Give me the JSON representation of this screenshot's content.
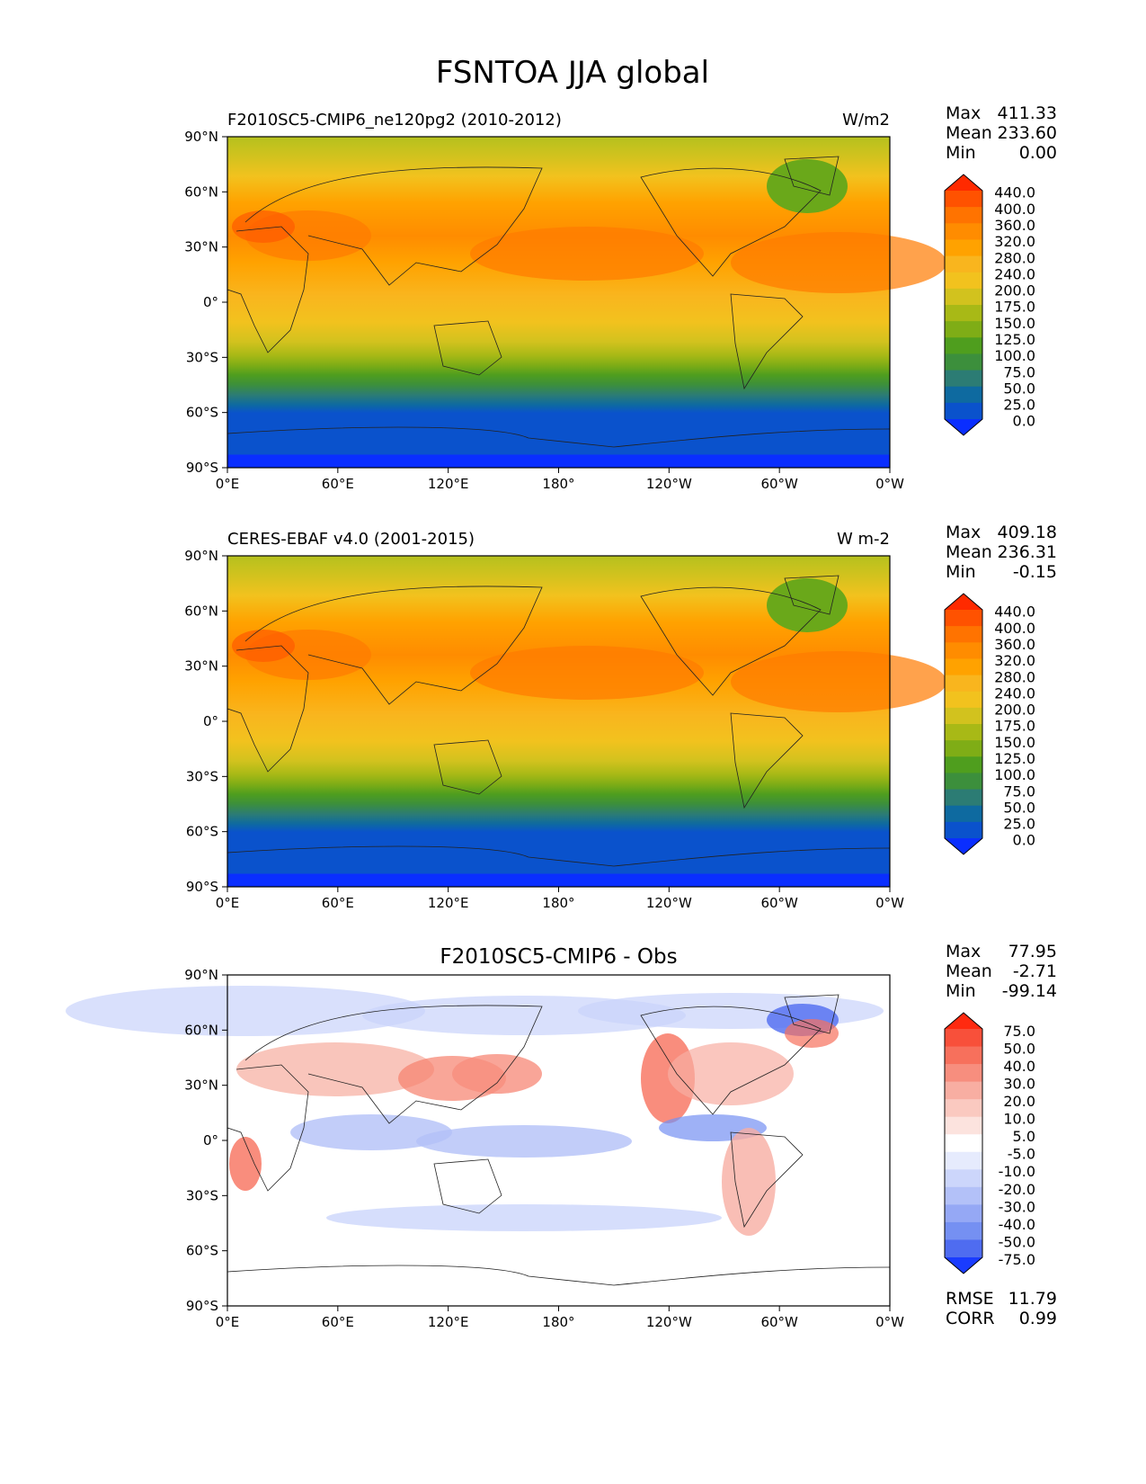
{
  "figure_title": "FSNTOA JJA global",
  "axes": {
    "lat_ticks": [
      "90°N",
      "60°N",
      "30°N",
      "0°",
      "30°S",
      "60°S",
      "90°S"
    ],
    "lon_ticks": [
      "0°E",
      "60°E",
      "120°E",
      "180°",
      "120°W",
      "60°W",
      "0°W"
    ]
  },
  "panels": [
    {
      "id": "test",
      "title_left": "F2010SC5-CMIP6_ne120pg2 (2010-2012)",
      "title_center": "",
      "units": "W/m2",
      "stats": [
        {
          "label": "Max",
          "value": "411.33"
        },
        {
          "label": "Mean",
          "value": "233.60"
        },
        {
          "label": "Min",
          "value": "0.00"
        }
      ],
      "colorbar": {
        "levels": [
          "440.0",
          "400.0",
          "360.0",
          "320.0",
          "280.0",
          "240.0",
          "200.0",
          "175.0",
          "150.0",
          "125.0",
          "100.0",
          "75.0",
          "50.0",
          "25.0",
          "0.0"
        ],
        "colors": [
          "#ff2a00",
          "#ff5200",
          "#ff7300",
          "#ff8c00",
          "#ffa200",
          "#f9b51e",
          "#f2c21e",
          "#d2c21e",
          "#a8b916",
          "#7fad16",
          "#4f9e1e",
          "#3c8f3c",
          "#2c7c74",
          "#0e6aa0",
          "#0a52cc",
          "#0a2eff"
        ]
      },
      "field": "absolute"
    },
    {
      "id": "reference",
      "title_left": "CERES-EBAF v4.0 (2001-2015)",
      "title_center": "",
      "units": "W m-2",
      "stats": [
        {
          "label": "Max",
          "value": "409.18"
        },
        {
          "label": "Mean",
          "value": "236.31"
        },
        {
          "label": "Min",
          "value": "-0.15"
        }
      ],
      "colorbar": {
        "levels": [
          "440.0",
          "400.0",
          "360.0",
          "320.0",
          "280.0",
          "240.0",
          "200.0",
          "175.0",
          "150.0",
          "125.0",
          "100.0",
          "75.0",
          "50.0",
          "25.0",
          "0.0"
        ],
        "colors": [
          "#ff2a00",
          "#ff5200",
          "#ff7300",
          "#ff8c00",
          "#ffa200",
          "#f9b51e",
          "#f2c21e",
          "#d2c21e",
          "#a8b916",
          "#7fad16",
          "#4f9e1e",
          "#3c8f3c",
          "#2c7c74",
          "#0e6aa0",
          "#0a52cc",
          "#0a2eff"
        ]
      },
      "field": "absolute"
    },
    {
      "id": "difference",
      "title_left": "",
      "title_center": "F2010SC5-CMIP6 - Obs",
      "units": "",
      "stats": [
        {
          "label": "Max",
          "value": "77.95"
        },
        {
          "label": "Mean",
          "value": "-2.71"
        },
        {
          "label": "Min",
          "value": "-99.14"
        }
      ],
      "colorbar": {
        "levels": [
          "75.0",
          "50.0",
          "40.0",
          "30.0",
          "20.0",
          "10.0",
          "5.0",
          "-5.0",
          "-10.0",
          "-20.0",
          "-30.0",
          "-40.0",
          "-50.0",
          "-75.0"
        ],
        "colors": [
          "#ff2a10",
          "#f8503a",
          "#f7705c",
          "#f78e7e",
          "#f8aea2",
          "#fac9c0",
          "#fce3de",
          "#ffffff",
          "#e6ebfd",
          "#ccd6fb",
          "#b3c1f8",
          "#95a8f5",
          "#7590f2",
          "#4f6cf0",
          "#1a3cff"
        ]
      },
      "field": "difference",
      "metrics": [
        {
          "label": "RMSE",
          "value": "11.79"
        },
        {
          "label": "CORR",
          "value": "0.99"
        }
      ]
    }
  ]
}
